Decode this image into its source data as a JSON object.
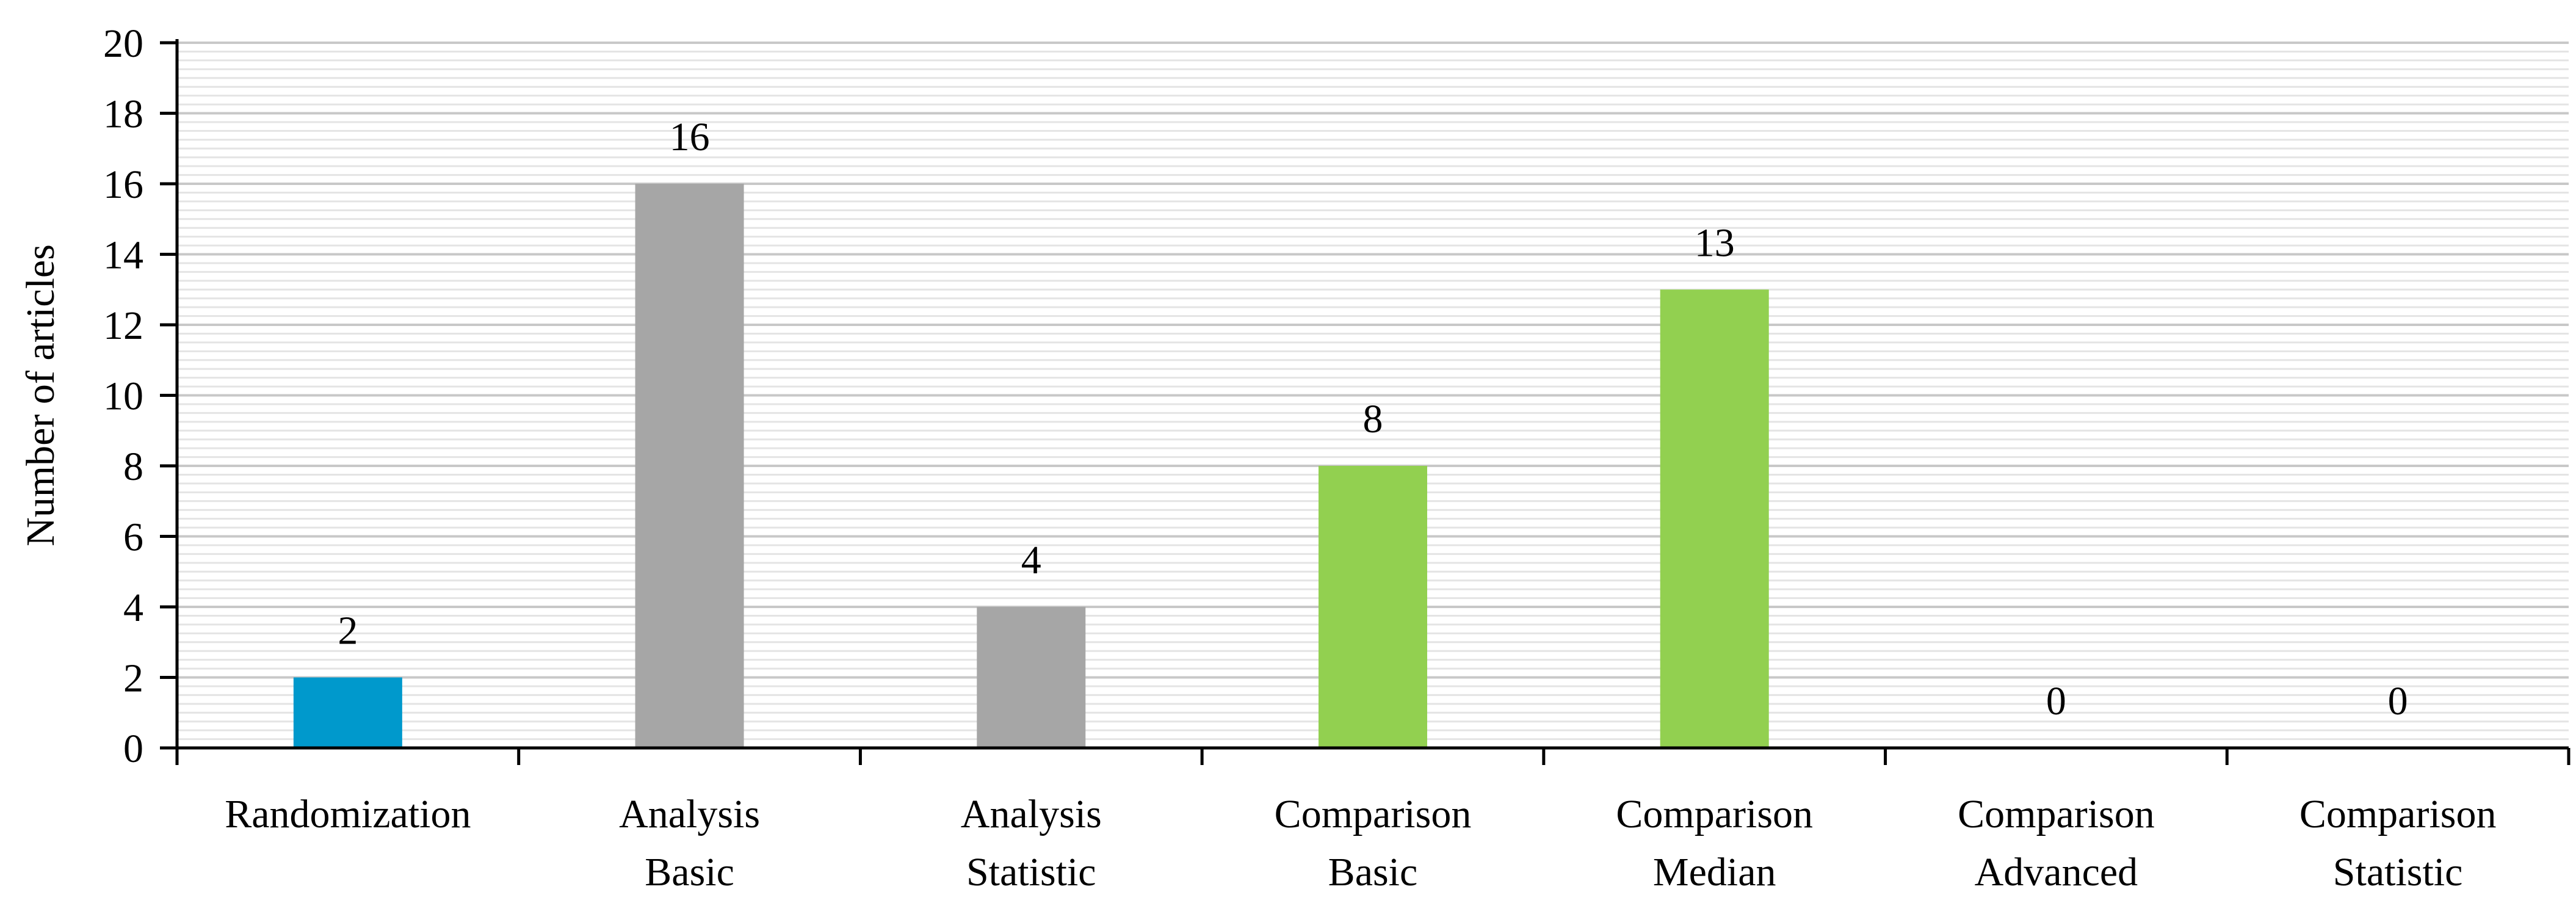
{
  "chart_data": {
    "type": "bar",
    "title": "",
    "xlabel": "",
    "ylabel": "Number of articles",
    "ylim": [
      0,
      20
    ],
    "y_ticks": [
      "0",
      "2",
      "4",
      "6",
      "8",
      "10",
      "12",
      "14",
      "16",
      "18",
      "20"
    ],
    "grid": true,
    "legend": "none",
    "categories": [
      [
        "Randomization"
      ],
      [
        "Analysis",
        "Basic"
      ],
      [
        "Analysis",
        "Statistic"
      ],
      [
        "Comparison",
        "Basic"
      ],
      [
        "Comparison",
        "Median"
      ],
      [
        "Comparison",
        "Advanced"
      ],
      [
        "Comparison",
        "Statistic"
      ]
    ],
    "values": [
      2,
      16,
      4,
      8,
      13,
      0,
      0
    ],
    "data_labels": [
      "2",
      "16",
      "4",
      "8",
      "13",
      "0",
      "0"
    ],
    "colors": [
      "#0099cc",
      "#a6a6a6",
      "#a6a6a6",
      "#92d050",
      "#92d050",
      "#92d050",
      "#92d050"
    ]
  }
}
